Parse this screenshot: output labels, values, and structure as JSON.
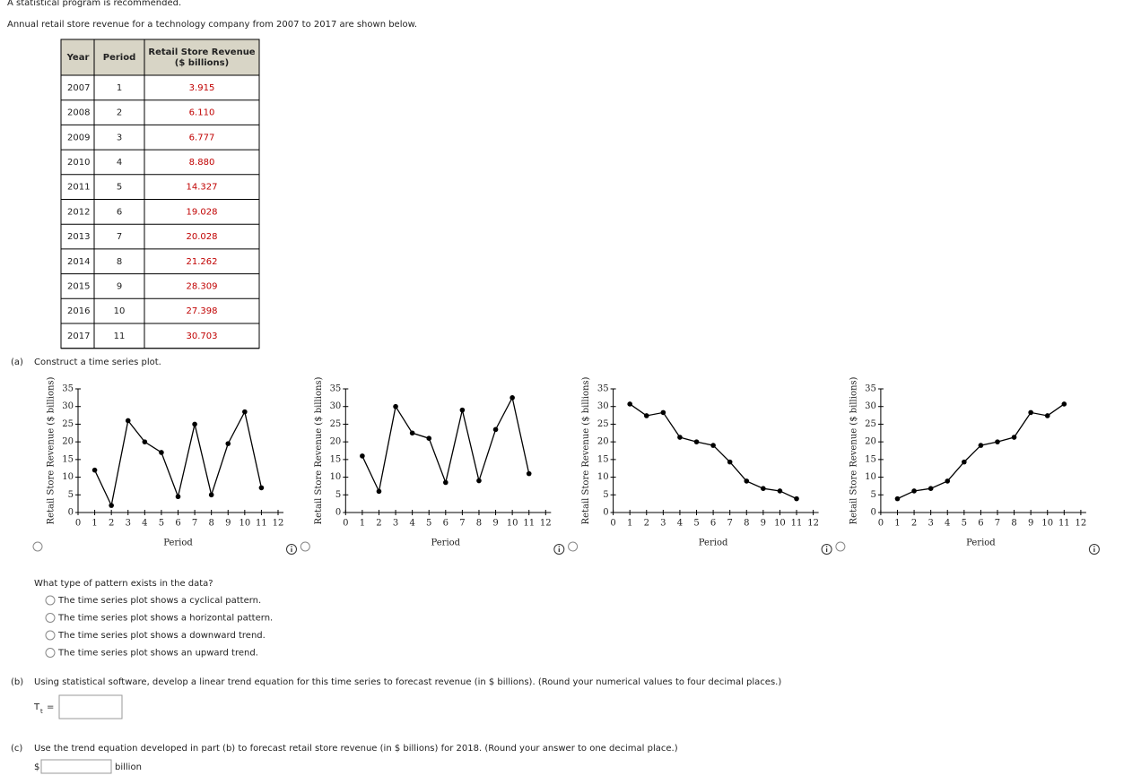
{
  "header": {
    "notice": "A statistical program is recommended.",
    "intro": "Annual retail store revenue for a technology company from 2007 to 2017 are shown below."
  },
  "table": {
    "columns": [
      "Year",
      "Period",
      "Retail Store Revenue"
    ],
    "column_unit": "($ billions)",
    "rows": [
      [
        "2007",
        "1",
        "3.915"
      ],
      [
        "2008",
        "2",
        "6.110"
      ],
      [
        "2009",
        "3",
        "6.777"
      ],
      [
        "2010",
        "4",
        "8.880"
      ],
      [
        "2011",
        "5",
        "14.327"
      ],
      [
        "2012",
        "6",
        "19.028"
      ],
      [
        "2013",
        "7",
        "20.028"
      ],
      [
        "2014",
        "8",
        "21.262"
      ],
      [
        "2015",
        "9",
        "28.309"
      ],
      [
        "2016",
        "10",
        "27.398"
      ],
      [
        "2017",
        "11",
        "30.703"
      ]
    ]
  },
  "part_a": {
    "label": "(a)",
    "prompt": "Construct a time series plot."
  },
  "chart_data": [
    {
      "type": "line",
      "x_label": "Period",
      "y_label": "Retail Store Revenue ($ billions)",
      "color": "#000000",
      "x": [
        1,
        2,
        3,
        4,
        5,
        6,
        7,
        8,
        9,
        10,
        11
      ],
      "values": [
        12,
        2,
        26,
        20,
        17,
        4.5,
        25,
        5,
        19.5,
        28.5,
        7
      ],
      "xlim": [
        0,
        12
      ],
      "ylim": [
        0,
        35
      ],
      "xticks": [
        0,
        1,
        2,
        3,
        4,
        5,
        6,
        7,
        8,
        9,
        10,
        11,
        12
      ],
      "yticks": [
        0,
        5,
        10,
        15,
        20,
        25,
        30,
        35
      ]
    },
    {
      "type": "line",
      "x_label": "Period",
      "y_label": "Retail Store Revenue ($ billions)",
      "color": "#000000",
      "x": [
        1,
        2,
        3,
        4,
        5,
        6,
        7,
        8,
        9,
        10,
        11
      ],
      "values": [
        16,
        6,
        30,
        22.5,
        21,
        8.5,
        29,
        9,
        23.5,
        32.5,
        11
      ],
      "xlim": [
        0,
        12
      ],
      "ylim": [
        0,
        35
      ],
      "xticks": [
        0,
        1,
        2,
        3,
        4,
        5,
        6,
        7,
        8,
        9,
        10,
        11,
        12
      ],
      "yticks": [
        0,
        5,
        10,
        15,
        20,
        25,
        30,
        35
      ]
    },
    {
      "type": "line",
      "x_label": "Period",
      "y_label": "Retail Store Revenue ($ billions)",
      "color": "#000000",
      "x": [
        1,
        2,
        3,
        4,
        5,
        6,
        7,
        8,
        9,
        10,
        11
      ],
      "values": [
        30.7,
        27.4,
        28.3,
        21.3,
        20,
        19,
        14.3,
        8.9,
        6.8,
        6.1,
        3.9
      ],
      "xlim": [
        0,
        12
      ],
      "ylim": [
        0,
        35
      ],
      "xticks": [
        0,
        1,
        2,
        3,
        4,
        5,
        6,
        7,
        8,
        9,
        10,
        11,
        12
      ],
      "yticks": [
        0,
        5,
        10,
        15,
        20,
        25,
        30,
        35
      ]
    },
    {
      "type": "line",
      "x_label": "Period",
      "y_label": "Retail Store Revenue ($ billions)",
      "color": "#000000",
      "x": [
        1,
        2,
        3,
        4,
        5,
        6,
        7,
        8,
        9,
        10,
        11
      ],
      "values": [
        3.9,
        6.1,
        6.8,
        8.9,
        14.3,
        19,
        20,
        21.3,
        28.3,
        27.4,
        30.7
      ],
      "xlim": [
        0,
        12
      ],
      "ylim": [
        0,
        35
      ],
      "xticks": [
        0,
        1,
        2,
        3,
        4,
        5,
        6,
        7,
        8,
        9,
        10,
        11,
        12
      ],
      "yticks": [
        0,
        5,
        10,
        15,
        20,
        25,
        30,
        35
      ]
    }
  ],
  "question": {
    "prompt": "What type of pattern exists in the data?",
    "options": [
      "The time series plot shows a cyclical pattern.",
      "The time series plot shows a horizontal pattern.",
      "The time series plot shows a downward trend.",
      "The time series plot shows an upward trend."
    ]
  },
  "part_b": {
    "label": "(b)",
    "prompt": "Using statistical software, develop a linear trend equation for this time series to forecast revenue (in $ billions). (Round your numerical values to four decimal places.)",
    "variable": "T",
    "subscript": "t",
    "equals": "="
  },
  "part_c": {
    "label": "(c)",
    "prompt": "Use the trend equation developed in part (b) to forecast retail store revenue (in $ billions) for 2018. (Round your answer to one decimal place.)",
    "currency": "$",
    "unit": "billion"
  }
}
